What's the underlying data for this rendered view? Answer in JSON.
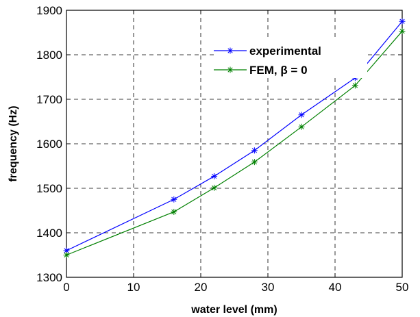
{
  "chart_data": {
    "type": "line",
    "xlabel": "water level (mm)",
    "ylabel": "frequency (Hz)",
    "xlim": [
      0,
      50
    ],
    "ylim": [
      1300,
      1900
    ],
    "xticks": [
      0,
      10,
      20,
      30,
      40,
      50
    ],
    "yticks": [
      1300,
      1400,
      1500,
      1600,
      1700,
      1800,
      1900
    ],
    "grid": true,
    "legend_position": "top-right",
    "series": [
      {
        "name": "experimental",
        "color": "#0000ff",
        "marker": "asterisk",
        "x": [
          0,
          16,
          22,
          28,
          35,
          43,
          50
        ],
        "y": [
          1360,
          1475,
          1527,
          1585,
          1665,
          1748,
          1875
        ]
      },
      {
        "name": "FEM, β = 0",
        "color": "#008000",
        "marker": "asterisk",
        "x": [
          0,
          16,
          22,
          28,
          35,
          43,
          50
        ],
        "y": [
          1350,
          1447,
          1501,
          1559,
          1638,
          1731,
          1853
        ]
      }
    ]
  }
}
